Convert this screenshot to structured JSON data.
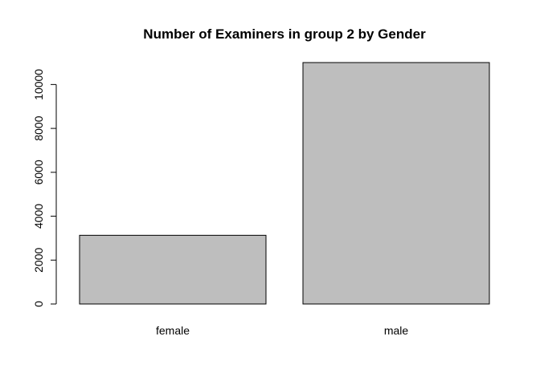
{
  "chart_data": {
    "type": "bar",
    "title": "Number of Examiners in group 2 by Gender",
    "xlabel": "",
    "ylabel": "",
    "categories": [
      "female",
      "male"
    ],
    "values": [
      3130,
      11000
    ],
    "ylim": [
      0,
      11000
    ],
    "yticks": [
      0,
      2000,
      4000,
      6000,
      8000,
      10000
    ],
    "ytick_labels": [
      "0",
      "2000",
      "4000",
      "6000",
      "8000",
      "10000"
    ],
    "bar_color": "#bebebe",
    "grid": false,
    "legend": "none"
  }
}
